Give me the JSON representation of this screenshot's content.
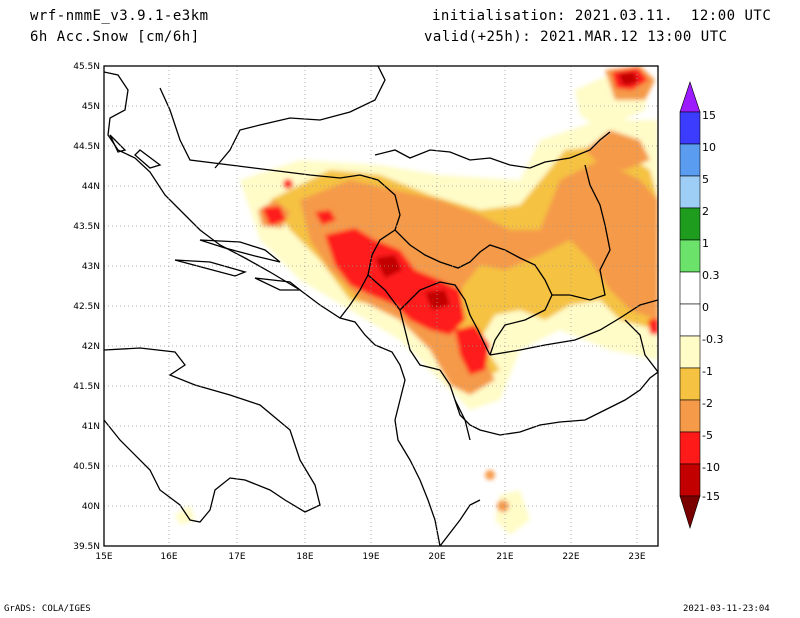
{
  "header": {
    "model": "wrf-nmmE_v3.9.1-e3km",
    "field": "6h Acc.Snow [cm/6h]",
    "init": "initialisation: 2021.03.11.  12:00 UTC",
    "valid": "valid(+25h): 2021.MAR.12 13:00 UTC"
  },
  "map": {
    "lat_ticks": [
      "45.5N",
      "45N",
      "44.5N",
      "44N",
      "43.5N",
      "43N",
      "42.5N",
      "42N",
      "41.5N",
      "41N",
      "40.5N",
      "40N",
      "39.5N"
    ],
    "lon_ticks": [
      "15E",
      "16E",
      "17E",
      "18E",
      "19E",
      "20E",
      "21E",
      "22E",
      "23E"
    ]
  },
  "legend": {
    "labels": [
      "15",
      "10",
      "5",
      "2",
      "1",
      "0.3",
      "0",
      "-0.3",
      "-1",
      "-2",
      "-5",
      "-10",
      "-15"
    ],
    "colors": [
      "#9c1cff",
      "#3c3cff",
      "#5a9cf0",
      "#9ecdf5",
      "#1e9c1e",
      "#6be36b",
      "#ffffff",
      "#fffcc8",
      "#f5c242",
      "#f59a48",
      "#ff1a1a",
      "#c20000",
      "#7a0000"
    ]
  },
  "footer": {
    "left": "GrADS: COLA/IGES",
    "right": "2021-03-11-23:04"
  }
}
